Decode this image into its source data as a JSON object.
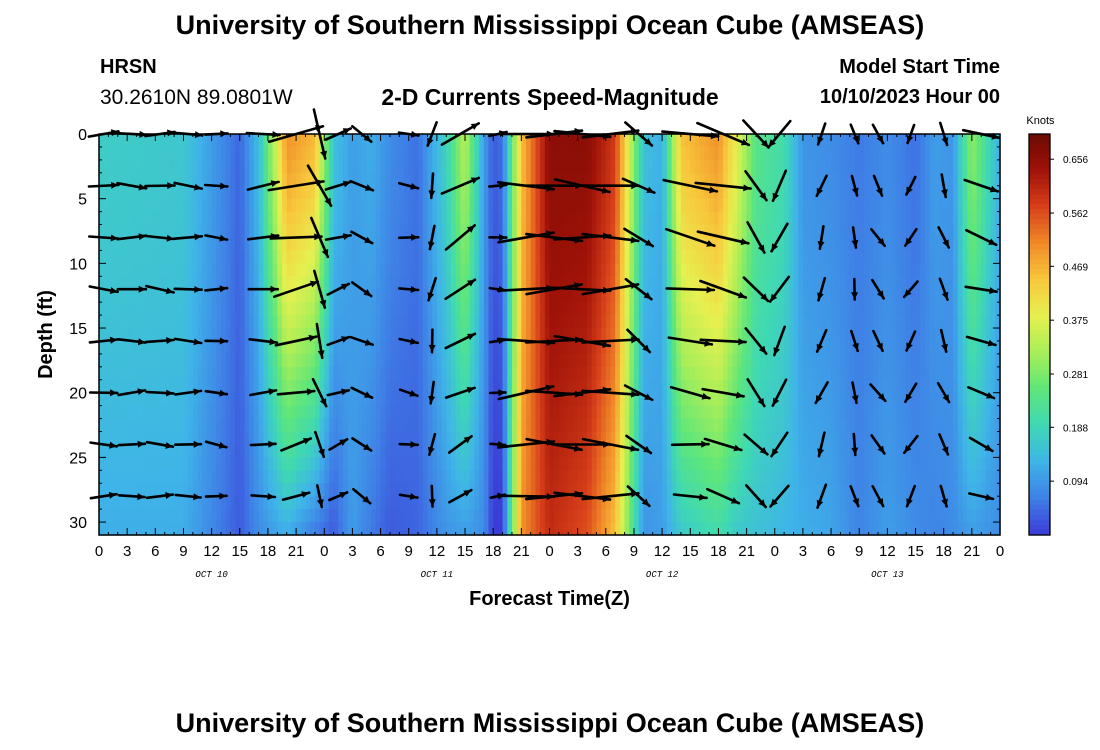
{
  "header": {
    "title": "University of Southern Mississippi Ocean Cube (AMSEAS)",
    "station": "HRSN",
    "coords": "30.2610N  89.0801W",
    "subtitle": "2-D Currents Speed-Magnitude",
    "model_start_label": "Model Start Time",
    "model_start_value": "10/10/2023 Hour 00"
  },
  "footer": {
    "title": "University of Southern Mississippi Ocean Cube (AMSEAS)"
  },
  "chart_data": {
    "type": "heatmap",
    "title": "2-D Currents Speed-Magnitude",
    "xlabel": "Forecast Time(Z)",
    "ylabel": "Depth (ft)",
    "ylim": [
      31,
      0
    ],
    "x_hours_range": [
      0,
      96
    ],
    "x_tick_labels": [
      "0",
      "3",
      "6",
      "9",
      "12",
      "15",
      "18",
      "21",
      "0",
      "3",
      "6",
      "9",
      "12",
      "15",
      "18",
      "21",
      "0",
      "3",
      "6",
      "9",
      "12",
      "15",
      "18",
      "21",
      "0",
      "3",
      "6",
      "9",
      "12",
      "15",
      "18",
      "21",
      "0"
    ],
    "day_labels": [
      {
        "label": "OCT 10",
        "hour": 12
      },
      {
        "label": "OCT 11",
        "hour": 36
      },
      {
        "label": "OCT 12",
        "hour": 60
      },
      {
        "label": "OCT 13",
        "hour": 84
      }
    ],
    "y_ticks": [
      0,
      5,
      10,
      15,
      20,
      25,
      30
    ],
    "colorbar": {
      "unit": "Knots",
      "min": 0.0,
      "max": 0.7,
      "tick_values": [
        0.656,
        0.562,
        0.469,
        0.375,
        0.281,
        0.188,
        0.094
      ],
      "tick_labels": [
        "0.656",
        "0.562",
        "0.469",
        "0.375",
        "0.281",
        "0.188",
        "0.094"
      ],
      "palette": [
        "#3b3bd6",
        "#3f7fe6",
        "#3fb4e8",
        "#3fd8b4",
        "#5fe67a",
        "#a8ee58",
        "#e6f050",
        "#f8c83c",
        "#f08a28",
        "#d8401a",
        "#a01208",
        "#6a0a04"
      ]
    },
    "vector_depths": [
      0,
      4,
      8,
      12,
      16,
      20,
      24,
      28
    ],
    "speed_profile": [
      {
        "hour": 0,
        "surf": 0.17,
        "bot": 0.12
      },
      {
        "hour": 9,
        "surf": 0.16,
        "bot": 0.12
      },
      {
        "hour": 13,
        "surf": 0.08,
        "bot": 0.06
      },
      {
        "hour": 15,
        "surf": 0.04,
        "bot": 0.03
      },
      {
        "hour": 17,
        "surf": 0.14,
        "bot": 0.08
      },
      {
        "hour": 20,
        "surf": 0.5,
        "bot": 0.12
      },
      {
        "hour": 23,
        "surf": 0.46,
        "bot": 0.06
      },
      {
        "hour": 25,
        "surf": 0.15,
        "bot": 0.03
      },
      {
        "hour": 27,
        "surf": 0.1,
        "bot": 0.1
      },
      {
        "hour": 29,
        "surf": 0.12,
        "bot": 0.06
      },
      {
        "hour": 31,
        "surf": 0.08,
        "bot": 0.03
      },
      {
        "hour": 34,
        "surf": 0.05,
        "bot": 0.04
      },
      {
        "hour": 37,
        "surf": 0.18,
        "bot": 0.09
      },
      {
        "hour": 39,
        "surf": 0.34,
        "bot": 0.1
      },
      {
        "hour": 41,
        "surf": 0.1,
        "bot": 0.08
      },
      {
        "hour": 42,
        "surf": 0.03,
        "bot": 0.0
      },
      {
        "hour": 43,
        "surf": 0.05,
        "bot": 0.0
      },
      {
        "hour": 45,
        "surf": 0.45,
        "bot": 0.5
      },
      {
        "hour": 48,
        "surf": 0.66,
        "bot": 0.6
      },
      {
        "hour": 52,
        "surf": 0.66,
        "bot": 0.56
      },
      {
        "hour": 55,
        "surf": 0.58,
        "bot": 0.45
      },
      {
        "hour": 58,
        "surf": 0.15,
        "bot": 0.09
      },
      {
        "hour": 60,
        "surf": 0.12,
        "bot": 0.1
      },
      {
        "hour": 62,
        "surf": 0.45,
        "bot": 0.16
      },
      {
        "hour": 66,
        "surf": 0.5,
        "bot": 0.2
      },
      {
        "hour": 68,
        "surf": 0.38,
        "bot": 0.16
      },
      {
        "hour": 70,
        "surf": 0.24,
        "bot": 0.15
      },
      {
        "hour": 73,
        "surf": 0.2,
        "bot": 0.13
      },
      {
        "hour": 75,
        "surf": 0.09,
        "bot": 0.12
      },
      {
        "hour": 78,
        "surf": 0.08,
        "bot": 0.11
      },
      {
        "hour": 81,
        "surf": 0.06,
        "bot": 0.07
      },
      {
        "hour": 84,
        "surf": 0.08,
        "bot": 0.1
      },
      {
        "hour": 87,
        "surf": 0.05,
        "bot": 0.08
      },
      {
        "hour": 89,
        "surf": 0.1,
        "bot": 0.07
      },
      {
        "hour": 91,
        "surf": 0.09,
        "bot": 0.08
      },
      {
        "hour": 93,
        "surf": 0.3,
        "bot": 0.1
      },
      {
        "hour": 96,
        "surf": 0.12,
        "bot": 0.08
      }
    ],
    "vector_columns": [
      {
        "hour": 0.5,
        "dir": 92
      },
      {
        "hour": 3.5,
        "dir": 92
      },
      {
        "hour": 6.5,
        "dir": 92
      },
      {
        "hour": 9.5,
        "dir": 92
      },
      {
        "hour": 12.5,
        "dir": 95
      },
      {
        "hour": 17.5,
        "dir": 88
      },
      {
        "hour": 21,
        "dir": 80
      },
      {
        "hour": 23.5,
        "dir": 160
      },
      {
        "hour": 25.5,
        "dir": 70
      },
      {
        "hour": 28,
        "dir": 120
      },
      {
        "hour": 33,
        "dir": 100
      },
      {
        "hour": 35.5,
        "dir": 190
      },
      {
        "hour": 38.5,
        "dir": 60
      },
      {
        "hour": 42.5,
        "dir": 88
      },
      {
        "hour": 45.5,
        "dir": 88
      },
      {
        "hour": 48.5,
        "dir": 92
      },
      {
        "hour": 51.5,
        "dir": 92
      },
      {
        "hour": 54.5,
        "dir": 90
      },
      {
        "hour": 57.5,
        "dir": 125
      },
      {
        "hour": 63,
        "dir": 100
      },
      {
        "hour": 66.5,
        "dir": 105
      },
      {
        "hour": 70,
        "dir": 140
      },
      {
        "hour": 72.5,
        "dir": 210
      },
      {
        "hour": 77,
        "dir": 200
      },
      {
        "hour": 80.5,
        "dir": 170
      },
      {
        "hour": 83,
        "dir": 150
      },
      {
        "hour": 86.5,
        "dir": 210
      },
      {
        "hour": 90,
        "dir": 160
      },
      {
        "hour": 94,
        "dir": 110
      }
    ]
  }
}
